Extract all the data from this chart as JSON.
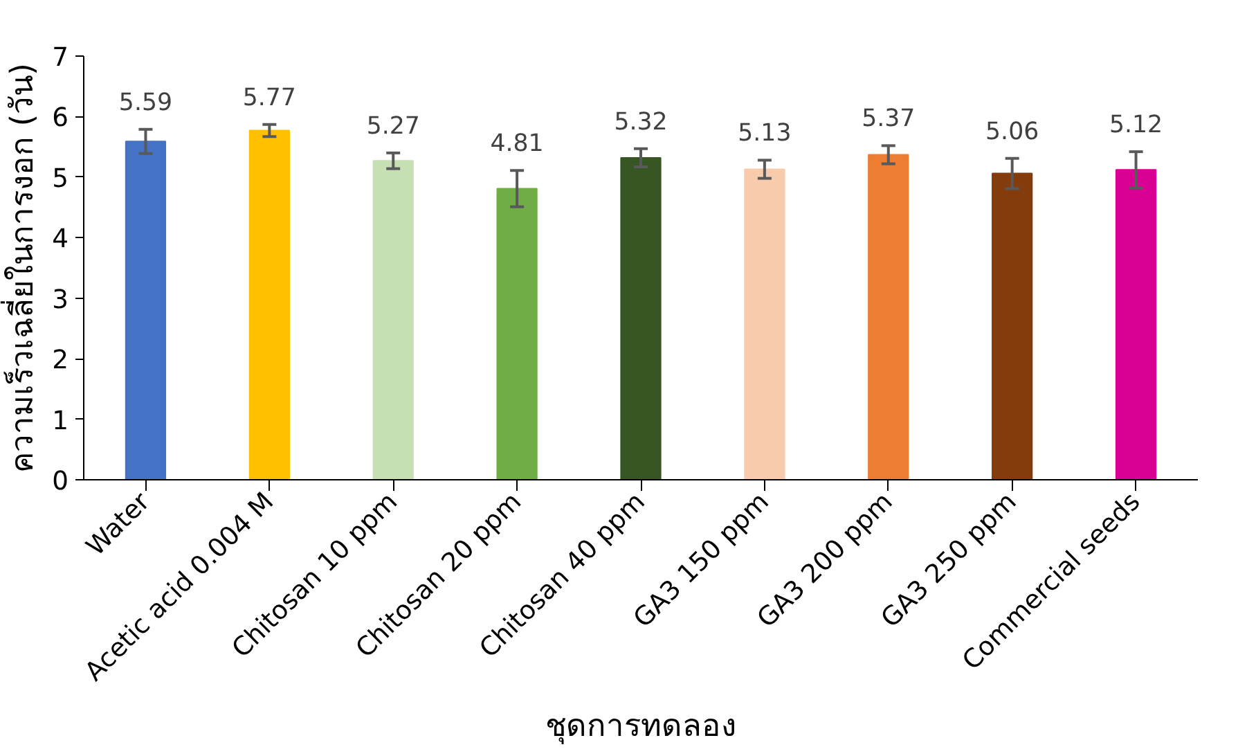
{
  "chart_data": {
    "type": "bar",
    "xlabel": "ชุดการทดลอง",
    "ylabel": "ความเร็วเฉลี่ยในการงอก (วัน)",
    "categories": [
      "Water",
      "Acetic acid 0.004 M",
      "Chitosan 10 ppm",
      "Chitosan 20 ppm",
      "Chitosan 40 ppm",
      "GA3 150 ppm",
      "GA3 200 ppm",
      "GA3 250 ppm",
      "Commercial seeds"
    ],
    "values": [
      5.59,
      5.77,
      5.27,
      4.81,
      5.32,
      5.13,
      5.37,
      5.06,
      5.12
    ],
    "colors": [
      "#4472c4",
      "#ffc000",
      "#c6e0b4",
      "#70ad47",
      "#375623",
      "#f8cbad",
      "#ed7d31",
      "#843c0c",
      "#d90093"
    ],
    "errors": [
      0.2,
      0.1,
      0.13,
      0.3,
      0.15,
      0.15,
      0.15,
      0.25,
      0.3
    ],
    "ylim": [
      0,
      7
    ],
    "yticks": [
      0,
      1,
      2,
      3,
      4,
      5,
      6,
      7
    ],
    "data_labels": true,
    "grid": false
  }
}
